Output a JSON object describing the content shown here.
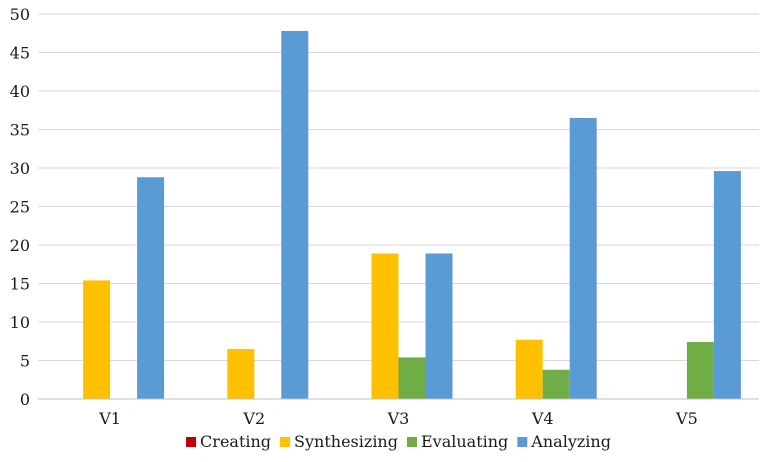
{
  "chart_data": {
    "type": "bar",
    "title": "",
    "xlabel": "",
    "ylabel": "",
    "categories": [
      "V1",
      "V2",
      "V3",
      "V4",
      "V5"
    ],
    "ylim": [
      0,
      50
    ],
    "yticks": [
      0,
      5,
      10,
      15,
      20,
      25,
      30,
      35,
      40,
      45,
      50
    ],
    "grid": true,
    "legend_position": "bottom",
    "series": [
      {
        "name": "Creating",
        "color": "#c00000",
        "values": [
          0,
          0,
          0,
          0,
          0
        ]
      },
      {
        "name": "Synthesizing",
        "color": "#ffc000",
        "values": [
          15.4,
          6.5,
          18.9,
          7.7,
          0
        ]
      },
      {
        "name": "Evaluating",
        "color": "#70ad47",
        "values": [
          0,
          0,
          5.4,
          3.8,
          7.4
        ]
      },
      {
        "name": "Analyzing",
        "color": "#5b9bd5",
        "values": [
          28.8,
          47.8,
          18.9,
          36.5,
          29.6
        ]
      }
    ]
  }
}
